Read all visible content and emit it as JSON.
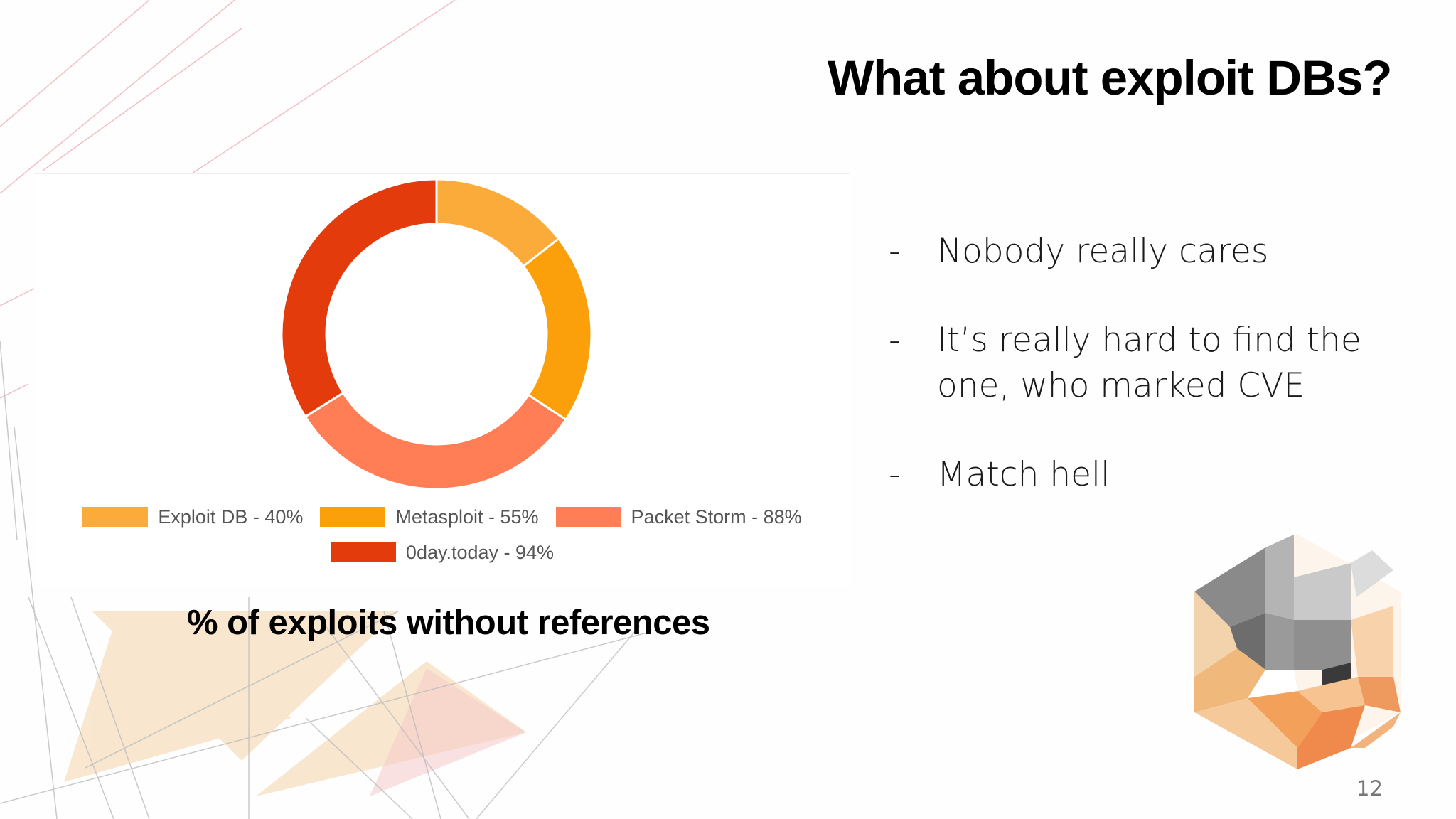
{
  "slide": {
    "title": "What about exploit DBs?",
    "caption": "% of exploits without references",
    "page_number": "12",
    "bullets": [
      "Nobody really cares",
      "It’s really hard to find the one, who marked CVE",
      "Match hell"
    ],
    "bullet_marker": "-"
  },
  "chart_data": {
    "type": "pie",
    "donut": true,
    "legend_position": "bottom",
    "categories": [
      "Exploit DB - 40%",
      "Metasploit - 55%",
      "Packet Storm - 88%",
      "0day.today - 94%"
    ],
    "values": [
      40,
      55,
      88,
      94
    ],
    "colors": [
      "#fbab3a",
      "#fb9f0b",
      "#ff7e56",
      "#e33b0c"
    ]
  }
}
